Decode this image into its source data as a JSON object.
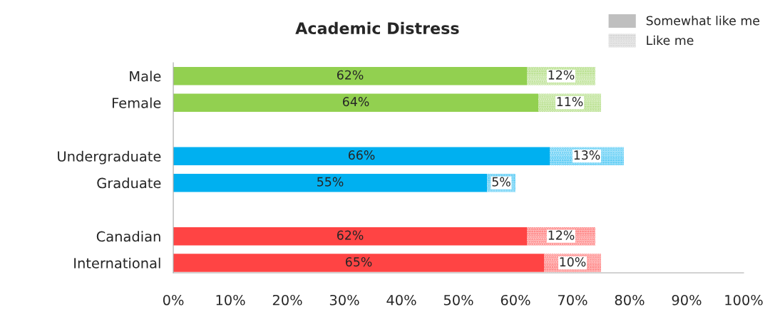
{
  "chart_data": {
    "type": "bar",
    "orientation": "horizontal",
    "stacked": true,
    "title": "Academic Distress",
    "categories": [
      "Male",
      "Female",
      null,
      "Undergraduate",
      "Graduate",
      null,
      "Canadian",
      "International"
    ],
    "series": [
      {
        "name": "Somewhat like me",
        "color": "#bfbfbf",
        "colors": [
          "#92d050",
          "#92d050",
          null,
          "#00b0f0",
          "#00b0f0",
          null,
          "#ff4444",
          "#ff4444"
        ],
        "values": [
          62,
          64,
          null,
          66,
          55,
          null,
          62,
          65
        ],
        "value_labels": [
          "62%",
          "64%",
          null,
          "66%",
          "55%",
          null,
          "62%",
          "65%"
        ]
      },
      {
        "name": "Like me",
        "color": "#bfbfbf",
        "colors": [
          "#92d050",
          "#92d050",
          null,
          "#00b0f0",
          "#00b0f0",
          null,
          "#ff4444",
          "#ff4444"
        ],
        "values": [
          12,
          11,
          null,
          13,
          5,
          null,
          12,
          10
        ],
        "value_labels": [
          "12%",
          "11%",
          null,
          "13%",
          "5%",
          null,
          "12%",
          "10%"
        ]
      }
    ],
    "xlim": [
      0,
      100
    ],
    "xticks": [
      {
        "value": 0,
        "label": "0%"
      },
      {
        "value": 10,
        "label": "10%"
      },
      {
        "value": 20,
        "label": "20%"
      },
      {
        "value": 30,
        "label": "30%"
      },
      {
        "value": 40,
        "label": "40%"
      },
      {
        "value": 50,
        "label": "50%"
      },
      {
        "value": 60,
        "label": "60%"
      },
      {
        "value": 70,
        "label": "70%"
      },
      {
        "value": 80,
        "label": "80%"
      },
      {
        "value": 90,
        "label": "90%"
      },
      {
        "value": 100,
        "label": "100%"
      }
    ],
    "grid": false,
    "legend": "top right"
  }
}
